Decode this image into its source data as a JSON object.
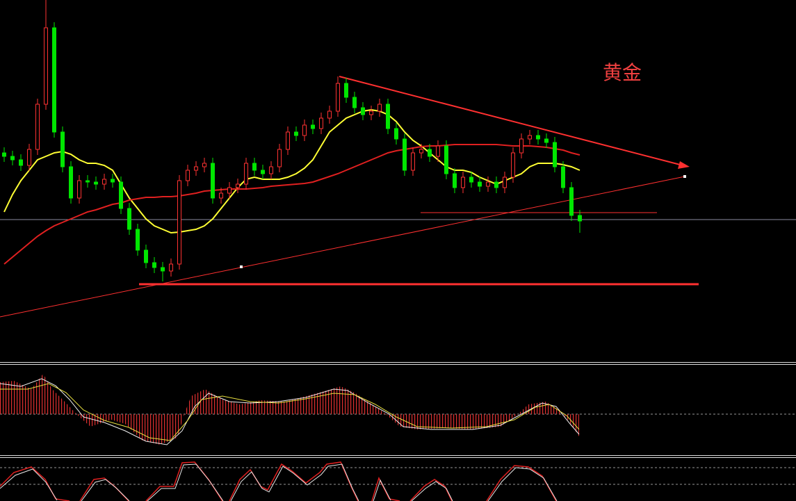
{
  "chart_data": {
    "type": "candlestick",
    "title": "黄金",
    "ylim": [
      0,
      520
    ],
    "up_color": "#ff3232",
    "down_color": "#00e600",
    "open": [
      300,
      295,
      290,
      282,
      305,
      370,
      480,
      330,
      280,
      235,
      260,
      258,
      255,
      262,
      258,
      220,
      190,
      160,
      142,
      135,
      130,
      140,
      260,
      275,
      280,
      285,
      235,
      242,
      250,
      255,
      285,
      275,
      270,
      280,
      305,
      330,
      325,
      340,
      335,
      350,
      360,
      400,
      380,
      365,
      355,
      360,
      370,
      335,
      320,
      275,
      300,
      305,
      295,
      310,
      270,
      250,
      265,
      258,
      252,
      258,
      250,
      265,
      300,
      320,
      325,
      320,
      315,
      280,
      250,
      210
    ],
    "high": [
      308,
      303,
      298,
      313,
      378,
      520,
      488,
      338,
      288,
      268,
      268,
      266,
      270,
      270,
      266,
      228,
      198,
      168,
      150,
      143,
      148,
      268,
      283,
      288,
      293,
      293,
      250,
      258,
      263,
      293,
      293,
      283,
      288,
      313,
      338,
      338,
      348,
      348,
      358,
      368,
      410,
      408,
      388,
      373,
      368,
      378,
      378,
      343,
      328,
      308,
      313,
      313,
      318,
      318,
      278,
      273,
      273,
      266,
      266,
      266,
      273,
      308,
      328,
      333,
      333,
      328,
      323,
      288,
      258,
      218
    ],
    "low": [
      287,
      282,
      274,
      274,
      297,
      362,
      322,
      272,
      227,
      227,
      250,
      247,
      247,
      250,
      212,
      182,
      152,
      134,
      127,
      115,
      122,
      132,
      252,
      267,
      272,
      227,
      227,
      234,
      242,
      247,
      267,
      262,
      262,
      272,
      297,
      317,
      317,
      327,
      327,
      342,
      352,
      372,
      357,
      347,
      347,
      352,
      327,
      312,
      267,
      267,
      292,
      287,
      287,
      262,
      242,
      242,
      250,
      244,
      244,
      242,
      242,
      257,
      292,
      312,
      312,
      307,
      272,
      242,
      202,
      185
    ],
    "close": [
      295,
      290,
      282,
      305,
      370,
      480,
      330,
      280,
      235,
      260,
      258,
      255,
      262,
      258,
      220,
      190,
      160,
      142,
      135,
      130,
      140,
      260,
      275,
      280,
      285,
      235,
      242,
      250,
      255,
      285,
      275,
      270,
      280,
      305,
      330,
      325,
      340,
      335,
      350,
      360,
      400,
      380,
      365,
      355,
      360,
      370,
      335,
      320,
      275,
      300,
      305,
      295,
      310,
      270,
      250,
      265,
      258,
      252,
      258,
      250,
      265,
      300,
      320,
      325,
      320,
      315,
      280,
      250,
      210,
      202
    ],
    "series": [
      {
        "color": "#ffff33",
        "values": [
          215,
          240,
          260,
          275,
          290,
          295,
          300,
          302,
          298,
          290,
          285,
          285,
          282,
          275,
          255,
          235,
          220,
          205,
          195,
          190,
          185,
          186,
          188,
          190,
          195,
          205,
          220,
          235,
          250,
          262,
          265,
          262,
          262,
          262,
          265,
          270,
          278,
          290,
          310,
          330,
          340,
          350,
          355,
          360,
          362,
          360,
          355,
          345,
          330,
          318,
          310,
          300,
          290,
          280,
          275,
          275,
          272,
          265,
          260,
          255,
          260,
          265,
          270,
          280,
          285,
          285,
          285,
          283,
          280,
          275
        ]
      },
      {
        "color": "#e02020",
        "values": [
          140,
          150,
          160,
          170,
          180,
          188,
          195,
          200,
          205,
          210,
          215,
          218,
          222,
          226,
          228,
          232,
          234,
          236,
          236,
          237,
          237,
          238,
          240,
          242,
          245,
          246,
          247,
          248,
          248,
          248,
          249,
          250,
          252,
          253,
          254,
          255,
          256,
          258,
          262,
          266,
          270,
          275,
          280,
          285,
          290,
          295,
          300,
          303,
          305,
          307,
          309,
          310,
          310,
          311,
          312,
          312,
          312,
          312,
          312,
          312,
          311,
          310,
          310,
          310,
          309,
          308,
          306,
          304,
          300,
          297
        ]
      }
    ]
  }
}
